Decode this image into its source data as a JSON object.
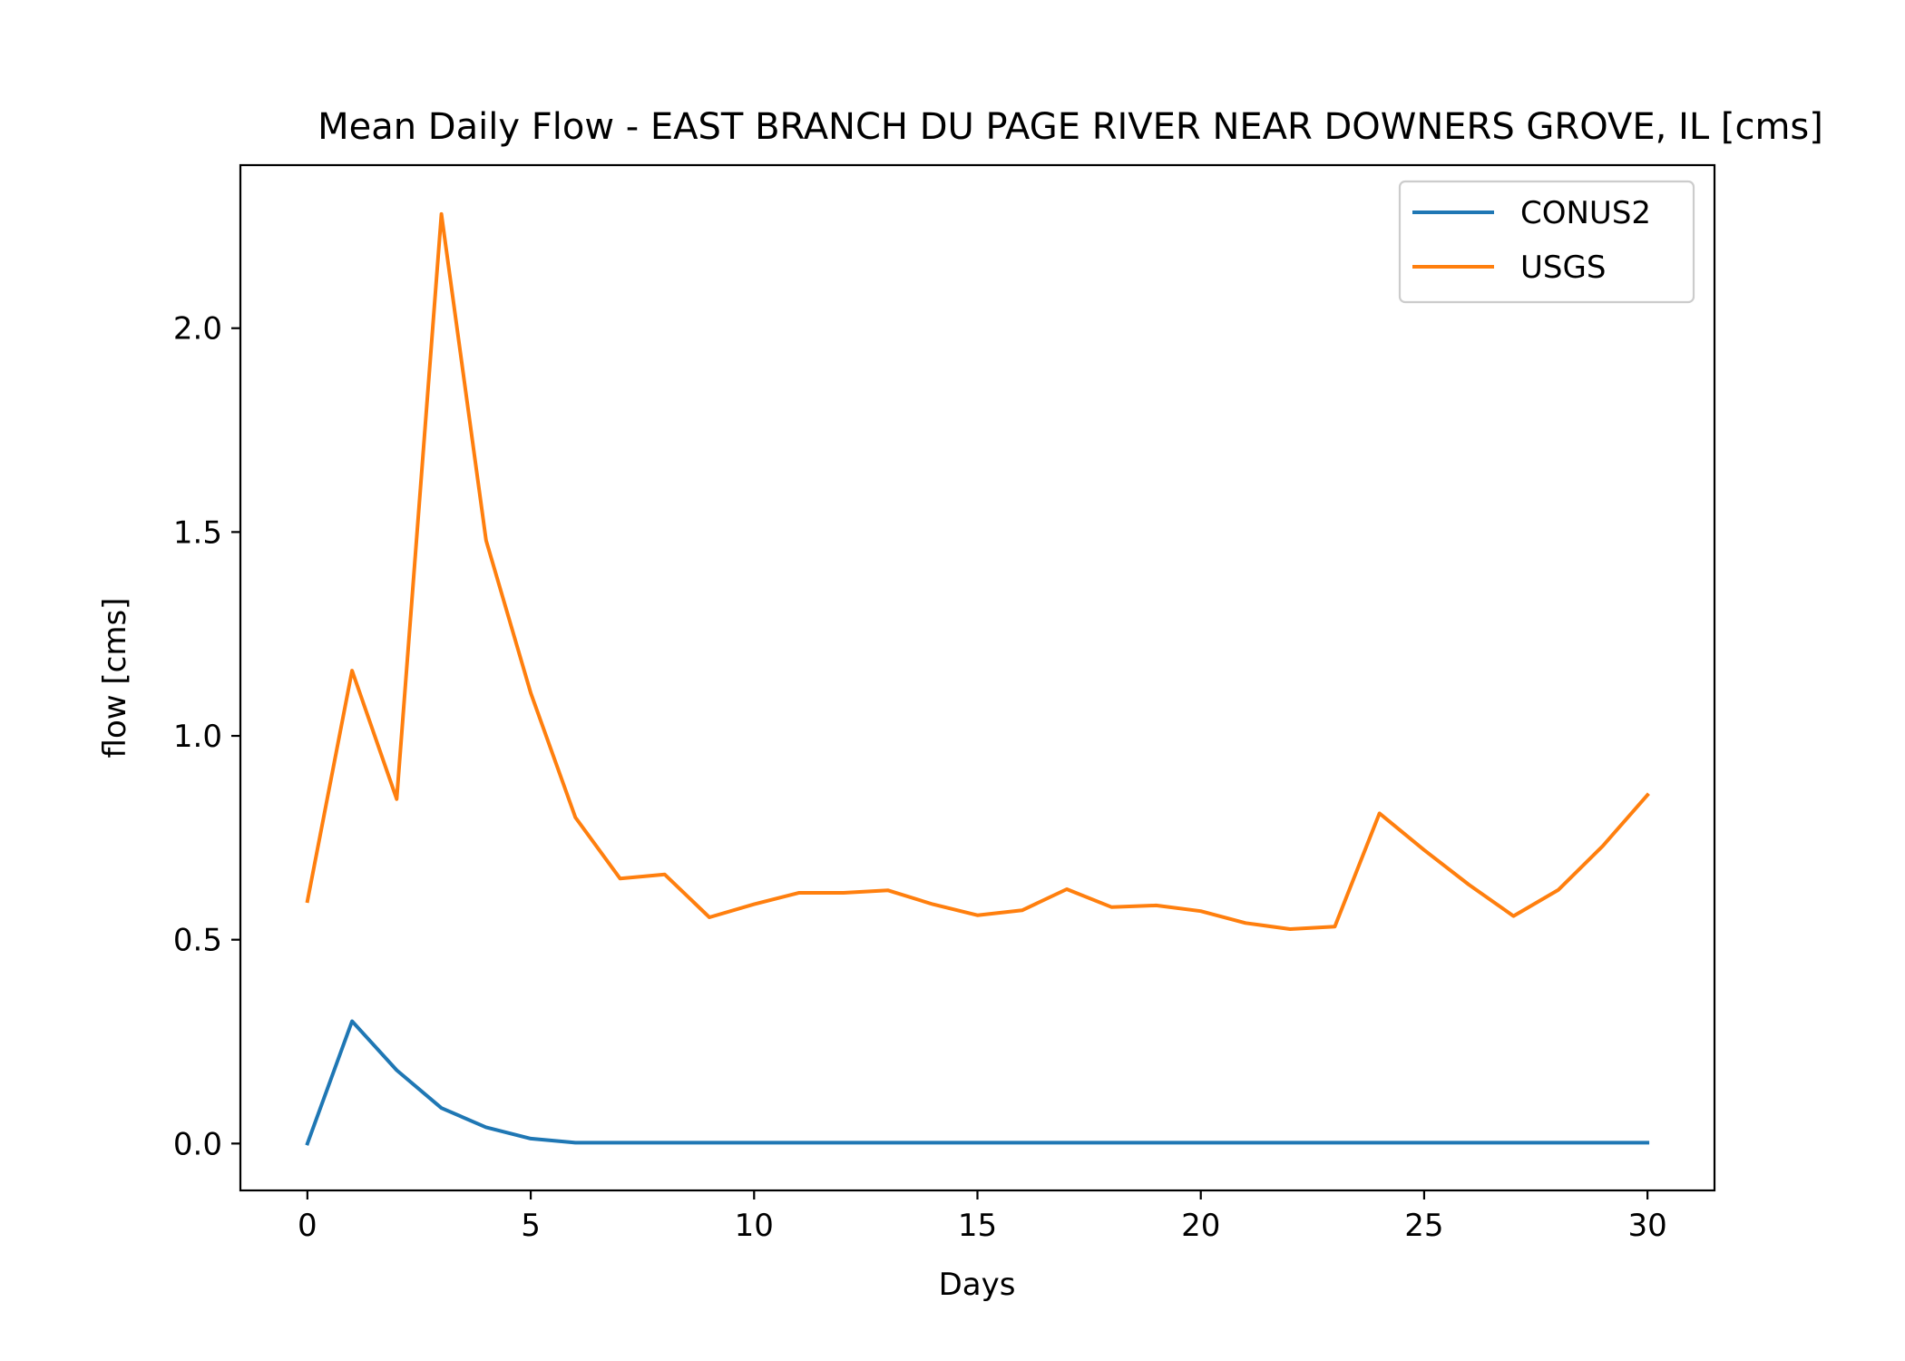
{
  "chart_data": {
    "type": "line",
    "title": "Mean Daily Flow - EAST BRANCH DU PAGE RIVER NEAR DOWNERS GROVE, IL [cms]",
    "xlabel": "Days",
    "ylabel": "flow [cms]",
    "xlim": [
      -1.5,
      31.5
    ],
    "ylim": [
      -0.115,
      2.4
    ],
    "xticks": [
      0,
      5,
      10,
      15,
      20,
      25,
      30
    ],
    "yticks": [
      0.0,
      0.5,
      1.0,
      1.5,
      2.0
    ],
    "xtick_labels": [
      "0",
      "5",
      "10",
      "15",
      "20",
      "25",
      "30"
    ],
    "ytick_labels": [
      "0.0",
      "0.5",
      "1.0",
      "1.5",
      "2.0"
    ],
    "grid": false,
    "legend_position": "top-right",
    "x": [
      0,
      1,
      2,
      3,
      4,
      5,
      6,
      7,
      8,
      9,
      10,
      11,
      12,
      13,
      14,
      15,
      16,
      17,
      18,
      19,
      20,
      21,
      22,
      23,
      24,
      25,
      26,
      27,
      28,
      29,
      30
    ],
    "series": [
      {
        "name": "CONUS2",
        "color": "#1f77b4",
        "values": [
          0.0,
          0.3,
          0.18,
          0.087,
          0.04,
          0.012,
          0.002,
          0.002,
          0.002,
          0.002,
          0.002,
          0.002,
          0.002,
          0.002,
          0.002,
          0.002,
          0.002,
          0.002,
          0.002,
          0.002,
          0.002,
          0.002,
          0.002,
          0.002,
          0.002,
          0.002,
          0.002,
          0.002,
          0.002,
          0.002,
          0.002
        ]
      },
      {
        "name": "USGS",
        "color": "#ff7f0e",
        "values": [
          0.595,
          1.16,
          0.845,
          2.28,
          1.48,
          1.105,
          0.8,
          0.65,
          0.66,
          0.555,
          0.587,
          0.615,
          0.615,
          0.621,
          0.587,
          0.56,
          0.572,
          0.624,
          0.58,
          0.584,
          0.57,
          0.541,
          0.526,
          0.532,
          0.81,
          0.72,
          0.635,
          0.558,
          0.622,
          0.73,
          0.855
        ]
      }
    ]
  }
}
